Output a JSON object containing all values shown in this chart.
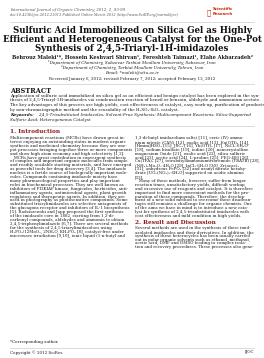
{
  "journal_line1": "International Journal of Organic Chemistry, 2012, 2, 93-99",
  "journal_line2": "doi:10.4236/ijoc.2012.21013 Published Online March 2012 (http://www.SciRP.org/journal/ijoc)",
  "title_line1": "Sulfuric Acid Immobilized on Silica Gel as Highly",
  "title_line2": "Efficient and Heterogeneous Catalyst for the One-Pot",
  "title_line3": "Synthesis of 2,4,5-Triaryl-1H-imidazoles",
  "authors": "Behrouz Maleki¹*, Hossein Keshvari Shirvan¹, Fereshteh Taimazi¹, Elahe Akbarzadeh²",
  "affil1": "¹Department of Chemistry, Sabzevar Tarbiat Moallem University, Sabzevar, Iran",
  "affil2": "²Department of Chemistry, Tarbiat Moallem University, Tehran, Iran",
  "affil3": "Email: *maleki@sttu.ac.ir",
  "received": "Received January 6, 2012; revised February 7, 2012; accepted February 13, 2012",
  "abstract_title": "ABSTRACT",
  "abstract_body": "Application of sulfuric acid immobilized on silica gel as an efficient and benign catalyst has been explored in the syn-\nthesis of 2,4,5-Triaryl-1H-imidazoles via condensation reaction of benzil or benzoin, aldehyde and ammonium acetate.\nThe key advantages of this process are high yields, cost effectiveness of catalyst, easy work-up, purification of products\nby non-chromatographic method and the reusability of the H₂SO₄·SiO₂ catalyst.",
  "keywords_label": "Keywords: ",
  "keywords_body": "2,4,5-Trisubstituted Imidazoles; Solvent-Free Synthesis; Multicomponent Reactions; Silica-Supported\nSulfuric Acid; Heterogeneous Catalyst",
  "sec1_title": "1. Introduction",
  "sec1_col1_lines": [
    "Multicomponent reactions (MCRs) have drawn great in-",
    "terest enjoying an outstanding status in modern organic",
    "synthesis and medicinal chemistry because they are one-",
    "pot processes bringing together three or more components",
    "and show high atom economy and high selectivity [1,2].",
    "   MCRs have great contribution in convergent synthesis",
    "of complex and important organic molecules from simple",
    "and readily available starting materials, and have emerged",
    "as powerful tools for drug discovery [3,4]. The imidazole",
    "nucleus is a fertile source of biologically important mole-",
    "cules. Compounds containing imidazole moiety have",
    "many pharmacological properties and play important",
    "roles in biochemical processes. They are well known as",
    "inhibitors of PI3KIAP kinase, fungicides, herbicides, anti-",
    "inflammatory agents, antimicrobial agents, plant growth",
    "regulators and therapeutic agents. In addition, they are",
    "used in photography as photosensitive compounds. Some",
    "substituted triarylimidazoles are selective antagonists of",
    "the glucagons receptor and inhibitors of IL-1 biosynthesis",
    "[5]. Radziszewski and Japp proposed the first synthesis",
    "of the imidazole core in 1882, starting from 1,2-di-",
    "carbonyl compounds, aldehydes and ammonia to obtain",
    "2,4,5-triphenylimidazole [6,7]. There are several methods",
    "for the synthesis of 2,4,5-triarylimidazoloes using",
    "H₃PO₄/12MoO₃, 2NH₂O, KH₂PO₄ [8], catalyst-free under",
    "microwave irradiation [9,10], ionic liquid (1-n-butyl and"
  ],
  "sec1_col2_lines": [
    "1,3-di-butyl imidazolium salts) [11], ceric (IV) ammo-",
    "nium nitrate (CAN) [12], oxalic acid [13], Eu(OTf)₃ [14],",
    "[Hmim]HSO₄ [15], JSC₄ [16], Yb(OTf)₃ [17], NiCl₂·6H₂O",
    "[18], sodium bisulfate [19], iodine [20], nanocrystalline",
    "magnesium Oxide [21], oxalic acid [22], silica sulfuric",
    "acid [23], acetic acid [24], L-proline [25], PEG-400 [26],",
    "Cu(TFA)₂ [27], tetrabutylammoniumtribromide (TBATB) [28],",
    "(NH₄)₂Mo₂O₇·4H₂O [29], InCl₃·6H₂O [30], Zr(acac)₄",
    "[31], anhydrous FePO₄ [32] and uranyl nitrate hexahy-",
    "drate [UO₂(NO₃)₂·6H₂O] supported on acidic alumina",
    "[33].",
    "   Many of these methods, however, suffer from longer",
    "reaction times, unsatisfactory yields, difficult workup,",
    "and excessive use of reagents and catalyst. It is therefore",
    "important to find more convenient methods for the pre-",
    "paration of these compounds. Therefore, the develop-",
    "ment of a new solid method to overcome these disadvan-",
    "tages still remains a challenge for organic chemists. One",
    "of the aims we have in mind is to introduce a new cata-",
    "lyst for synthesis of 2,4,5-trisubstituted imidazoles with",
    "cost effectiveness and mild condition in high yields."
  ],
  "sec2_title": "2. Result and Discussion",
  "sec2_col2_lines": [
    "Several methods are used in the synthesis of these imid-",
    "azolated imidazoles and their derivatives. In addition, the",
    "synthesis of these heterocycles has been usually carried",
    "out in polar organic solvents such as ethanol, methanol,",
    "acetic acid, DMF and DMSO leading to complex isola-",
    "tion and recovery procedures. These processes also gene-"
  ],
  "footnote": "*Corresponding author.",
  "footer_left": "Copyright © 2012 SciRes.",
  "footer_right": "IJOC",
  "bg_color": "#ffffff",
  "text_color": "#1a1a1a",
  "gray_color": "#555555",
  "red_color": "#8B1A1A",
  "line_color": "#cccccc"
}
